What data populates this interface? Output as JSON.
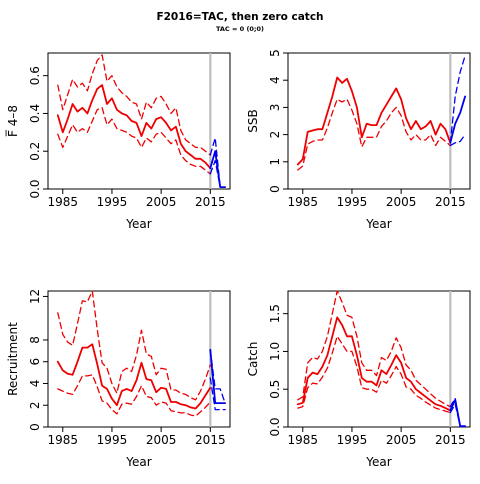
{
  "title": "F2016=TAC, then zero catch",
  "subtitle": "TAC = 0 (0;0)",
  "chart_data": [
    {
      "type": "line",
      "ylabel": "F̅ 4–8",
      "xlabel": "Year",
      "xlim": [
        1982,
        2019
      ],
      "ylim": [
        0,
        0.72
      ],
      "xticks": [
        1985,
        1995,
        2005,
        2015
      ],
      "yticks": [
        0.0,
        0.2,
        0.4,
        0.6
      ],
      "ytick_labels": [
        "0.0",
        "0.2",
        "0.4",
        "0.6"
      ],
      "vline_x": 2015,
      "historical": {
        "x": [
          1984,
          1985,
          1986,
          1987,
          1988,
          1989,
          1990,
          1991,
          1992,
          1993,
          1994,
          1995,
          1996,
          1997,
          1998,
          1999,
          2000,
          2001,
          2002,
          2003,
          2004,
          2005,
          2006,
          2007,
          2008,
          2009,
          2010,
          2011,
          2012,
          2013,
          2014,
          2015
        ],
        "estimate": [
          0.39,
          0.3,
          0.37,
          0.45,
          0.41,
          0.43,
          0.4,
          0.47,
          0.53,
          0.55,
          0.45,
          0.48,
          0.42,
          0.4,
          0.39,
          0.36,
          0.35,
          0.28,
          0.35,
          0.32,
          0.37,
          0.38,
          0.35,
          0.31,
          0.33,
          0.24,
          0.2,
          0.18,
          0.16,
          0.16,
          0.14,
          0.11
        ],
        "lower": [
          0.29,
          0.22,
          0.28,
          0.34,
          0.3,
          0.32,
          0.3,
          0.36,
          0.42,
          0.43,
          0.34,
          0.37,
          0.32,
          0.31,
          0.3,
          0.28,
          0.27,
          0.22,
          0.27,
          0.25,
          0.29,
          0.3,
          0.27,
          0.24,
          0.26,
          0.18,
          0.15,
          0.13,
          0.12,
          0.12,
          0.1,
          0.08
        ],
        "upper": [
          0.55,
          0.42,
          0.5,
          0.58,
          0.54,
          0.56,
          0.52,
          0.61,
          0.68,
          0.71,
          0.57,
          0.6,
          0.54,
          0.51,
          0.49,
          0.46,
          0.45,
          0.37,
          0.46,
          0.43,
          0.48,
          0.49,
          0.45,
          0.4,
          0.43,
          0.31,
          0.26,
          0.24,
          0.22,
          0.22,
          0.2,
          0.18
        ]
      },
      "forecast": {
        "x": [
          2015,
          2016,
          2017,
          2018
        ],
        "estimate": [
          0.11,
          0.2,
          0.01,
          0.01
        ],
        "lower": [
          0.08,
          0.15,
          0.01,
          0.01
        ],
        "upper": [
          0.18,
          0.27,
          0.01,
          0.01
        ]
      }
    },
    {
      "type": "line",
      "ylabel": "SSB",
      "xlabel": "Year",
      "xlim": [
        1982,
        2019
      ],
      "ylim": [
        0,
        5
      ],
      "xticks": [
        1985,
        1995,
        2005,
        2015
      ],
      "yticks": [
        0,
        1,
        2,
        3,
        4,
        5
      ],
      "ytick_labels": [
        "0",
        "1",
        "2",
        "3",
        "4",
        "5"
      ],
      "vline_x": 2015,
      "historical": {
        "x": [
          1984,
          1985,
          1986,
          1987,
          1988,
          1989,
          1990,
          1991,
          1992,
          1993,
          1994,
          1995,
          1996,
          1997,
          1998,
          1999,
          2000,
          2001,
          2002,
          2003,
          2004,
          2005,
          2006,
          2007,
          2008,
          2009,
          2010,
          2011,
          2012,
          2013,
          2014,
          2015
        ],
        "estimate": [
          0.9,
          1.1,
          2.1,
          2.15,
          2.2,
          2.2,
          2.8,
          3.4,
          4.1,
          3.9,
          4.05,
          3.6,
          3.0,
          1.9,
          2.4,
          2.35,
          2.35,
          2.8,
          3.1,
          3.4,
          3.7,
          3.3,
          2.6,
          2.2,
          2.5,
          2.2,
          2.3,
          2.5,
          2.0,
          2.4,
          2.2,
          1.7
        ],
        "lower": [
          0.7,
          0.85,
          1.65,
          1.75,
          1.8,
          1.8,
          2.25,
          2.8,
          3.3,
          3.2,
          3.3,
          2.9,
          2.4,
          1.55,
          1.9,
          1.9,
          1.9,
          2.3,
          2.5,
          2.8,
          3.0,
          2.7,
          2.1,
          1.8,
          2.0,
          1.8,
          1.8,
          2.0,
          1.6,
          1.9,
          1.75,
          1.6
        ]
      },
      "forecast": {
        "x": [
          2015,
          2016,
          2017,
          2018
        ],
        "estimate": [
          1.7,
          2.4,
          2.8,
          3.4
        ],
        "lower": [
          1.6,
          1.7,
          1.75,
          2.0
        ],
        "upper": [
          1.7,
          3.4,
          4.3,
          4.9
        ]
      }
    },
    {
      "type": "line",
      "ylabel": "Recruitment",
      "xlabel": "Year",
      "xlim": [
        1982,
        2019
      ],
      "ylim": [
        0,
        12.5
      ],
      "xticks": [
        1985,
        1995,
        2005,
        2015
      ],
      "yticks": [
        0,
        2,
        4,
        6,
        8,
        12
      ],
      "ytick_labels": [
        "0",
        "2",
        "4",
        "6",
        "8",
        "12"
      ],
      "vline_x": 2015,
      "historical": {
        "x": [
          1984,
          1985,
          1986,
          1987,
          1988,
          1989,
          1990,
          1991,
          1992,
          1993,
          1994,
          1995,
          1996,
          1997,
          1998,
          1999,
          2000,
          2001,
          2002,
          2003,
          2004,
          2005,
          2006,
          2007,
          2008,
          2009,
          2010,
          2011,
          2012,
          2013,
          2014,
          2015
        ],
        "estimate": [
          6.0,
          5.2,
          4.9,
          4.8,
          6.0,
          7.3,
          7.3,
          7.6,
          5.8,
          3.8,
          3.5,
          2.6,
          2.0,
          3.3,
          3.5,
          3.3,
          4.3,
          5.9,
          4.4,
          4.3,
          3.2,
          3.6,
          3.5,
          2.3,
          2.3,
          2.1,
          2.0,
          1.8,
          1.7,
          2.2,
          2.9,
          3.6
        ],
        "lower": [
          3.5,
          3.3,
          3.1,
          3.0,
          3.8,
          4.7,
          4.7,
          4.8,
          3.7,
          2.4,
          2.2,
          1.6,
          1.2,
          2.1,
          2.2,
          2.1,
          2.8,
          3.8,
          2.8,
          2.7,
          2.0,
          2.3,
          2.2,
          1.5,
          1.4,
          1.3,
          1.3,
          1.1,
          1.0,
          1.4,
          1.8,
          2.3
        ],
        "upper": [
          10.5,
          8.5,
          7.8,
          7.5,
          9.5,
          11.6,
          11.5,
          12.5,
          9.0,
          5.9,
          5.4,
          4.0,
          3.1,
          5.1,
          5.4,
          5.1,
          6.6,
          8.9,
          6.7,
          6.5,
          4.8,
          5.4,
          5.3,
          3.4,
          3.4,
          3.1,
          3.0,
          2.7,
          2.5,
          3.3,
          4.4,
          5.7
        ]
      },
      "forecast": {
        "x": [
          2015,
          2016,
          2017,
          2018
        ],
        "estimate": [
          7.1,
          2.2,
          2.2,
          2.2
        ],
        "lower": [
          4.5,
          1.6,
          1.6,
          1.6
        ],
        "upper": [
          7.1,
          3.5,
          3.5,
          2.2
        ]
      }
    },
    {
      "type": "line",
      "ylabel": "Catch",
      "xlabel": "Year",
      "xlim": [
        1982,
        2019
      ],
      "ylim": [
        0,
        1.8
      ],
      "xticks": [
        1985,
        1995,
        2005,
        2015
      ],
      "yticks": [
        0.0,
        0.5,
        1.0,
        1.5
      ],
      "ytick_labels": [
        "0.0",
        "0.5",
        "1.0",
        "1.5"
      ],
      "vline_x": 2015,
      "historical": {
        "x": [
          1984,
          1985,
          1986,
          1987,
          1988,
          1989,
          1990,
          1991,
          1992,
          1993,
          1994,
          1995,
          1996,
          1997,
          1998,
          1999,
          2000,
          2001,
          2002,
          2003,
          2004,
          2005,
          2006,
          2007,
          2008,
          2009,
          2010,
          2011,
          2012,
          2013,
          2014,
          2015
        ],
        "estimate": [
          0.3,
          0.32,
          0.65,
          0.72,
          0.7,
          0.8,
          0.95,
          1.2,
          1.45,
          1.35,
          1.2,
          1.2,
          0.95,
          0.65,
          0.6,
          0.6,
          0.55,
          0.75,
          0.7,
          0.82,
          0.95,
          0.85,
          0.65,
          0.6,
          0.5,
          0.45,
          0.4,
          0.35,
          0.3,
          0.28,
          0.25,
          0.22
        ],
        "lower": [
          0.25,
          0.27,
          0.52,
          0.58,
          0.57,
          0.66,
          0.78,
          0.98,
          1.2,
          1.1,
          1.0,
          1.0,
          0.8,
          0.52,
          0.5,
          0.5,
          0.46,
          0.62,
          0.58,
          0.68,
          0.8,
          0.7,
          0.53,
          0.5,
          0.42,
          0.38,
          0.33,
          0.29,
          0.25,
          0.23,
          0.21,
          0.19
        ],
        "upper": [
          0.36,
          0.4,
          0.85,
          0.92,
          0.9,
          1.0,
          1.2,
          1.5,
          1.8,
          1.65,
          1.48,
          1.45,
          1.2,
          0.85,
          0.75,
          0.75,
          0.68,
          0.92,
          0.88,
          1.0,
          1.18,
          1.05,
          0.82,
          0.75,
          0.62,
          0.56,
          0.5,
          0.44,
          0.38,
          0.34,
          0.3,
          0.27
        ]
      },
      "forecast": {
        "x": [
          2015,
          2016,
          2017,
          2018
        ],
        "estimate": [
          0.22,
          0.36,
          0.01,
          0.01
        ],
        "lower": [
          0.19,
          0.3,
          0.01,
          0.01
        ],
        "upper": [
          0.27,
          0.38,
          0.01,
          0.01
        ]
      }
    }
  ],
  "colors": {
    "historical": "#ee0000",
    "forecast": "#0000ee",
    "vline": "#bebebe",
    "axis": "#000000"
  }
}
